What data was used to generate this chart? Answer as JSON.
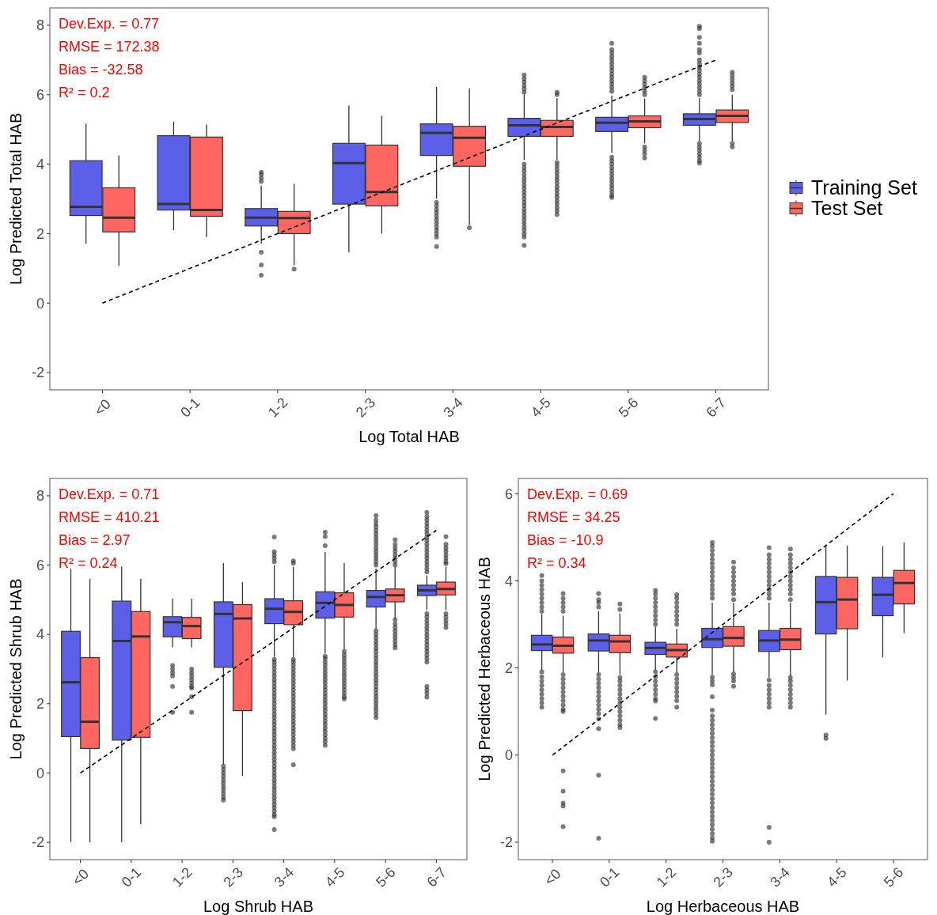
{
  "chart_data": [
    {
      "type": "box",
      "xlabel": "Log Total HAB",
      "ylabel": "Log Predicted Total HAB",
      "categories": [
        "<0",
        "0-1",
        "1-2",
        "2-3",
        "3-4",
        "4-5",
        "5-6",
        "6-7"
      ],
      "ylim": [
        -2.5,
        8.5
      ],
      "yticks": [
        -2,
        0,
        2,
        4,
        6,
        8
      ],
      "legend": "right",
      "annotations": [
        "Dev.Exp. = 0.77",
        "RMSE = 172.38",
        "Bias = -32.58",
        "R² = 0.2"
      ],
      "series": [
        {
          "name": "Training Set",
          "color": "#5c5fe8",
          "boxes": [
            {
              "low": 1.71,
              "q1": 2.52,
              "median": 2.77,
              "q3": 4.1,
              "high": 5.17
            },
            {
              "low": 2.1,
              "q1": 2.68,
              "median": 2.85,
              "q3": 4.82,
              "high": 5.22
            },
            {
              "low": 1.71,
              "q1": 2.22,
              "median": 2.46,
              "q3": 2.72,
              "high": 3.38,
              "outliers": [
                3.77,
                3.7,
                3.6,
                3.5,
                1.46,
                1.1,
                0.8
              ]
            },
            {
              "low": 1.46,
              "q1": 2.85,
              "median": 4.03,
              "q3": 4.6,
              "high": 5.69
            },
            {
              "low": 3.0,
              "q1": 4.25,
              "median": 4.9,
              "q3": 5.16,
              "high": 6.22,
              "outliers": [
                2.9,
                2.8,
                2.7,
                2.6,
                2.5,
                2.4,
                2.3,
                2.2,
                2.1,
                2.0,
                1.9,
                1.63
              ]
            },
            {
              "low": 4.12,
              "q1": 4.8,
              "median": 5.12,
              "q3": 5.32,
              "high": 6.0,
              "outliers": [
                6.57,
                6.47,
                6.37,
                6.27,
                6.17,
                6.07,
                4.0,
                3.9,
                3.8,
                3.7,
                3.6,
                3.5,
                3.4,
                3.3,
                3.2,
                3.1,
                3.0,
                2.9,
                2.8,
                2.7,
                2.6,
                2.5,
                2.4,
                2.3,
                2.2,
                2.1,
                2.0,
                1.9,
                1.66
              ]
            },
            {
              "low": 4.33,
              "q1": 4.94,
              "median": 5.19,
              "q3": 5.35,
              "high": 5.97,
              "outliers": [
                7.48,
                7.3,
                7.2,
                7.1,
                7.0,
                6.9,
                6.8,
                6.7,
                6.6,
                6.5,
                6.4,
                6.3,
                6.2,
                6.1,
                4.2,
                4.1,
                4.0,
                3.9,
                3.8,
                3.7,
                3.6,
                3.5,
                3.4,
                3.3,
                3.2,
                3.1,
                3.04
              ]
            },
            {
              "low": 4.67,
              "q1": 5.12,
              "median": 5.3,
              "q3": 5.45,
              "high": 5.9,
              "outliers": [
                7.97,
                7.9,
                7.65,
                7.48,
                7.3,
                7.2,
                7.0,
                6.9,
                6.8,
                6.7,
                6.6,
                6.5,
                6.4,
                6.3,
                6.2,
                6.1,
                6.0,
                4.6,
                4.5,
                4.4,
                4.3,
                4.2,
                4.1,
                4.03
              ]
            }
          ]
        },
        {
          "name": "Test Set",
          "color": "#fe6661",
          "boxes": [
            {
              "low": 1.07,
              "q1": 2.05,
              "median": 2.46,
              "q3": 3.32,
              "high": 4.25
            },
            {
              "low": 1.9,
              "q1": 2.5,
              "median": 2.68,
              "q3": 4.78,
              "high": 5.14
            },
            {
              "low": 1.1,
              "q1": 2.0,
              "median": 2.45,
              "q3": 2.64,
              "high": 3.44,
              "outliers": [
                0.98
              ]
            },
            {
              "low": 2.0,
              "q1": 2.8,
              "median": 3.2,
              "q3": 4.55,
              "high": 5.39
            },
            {
              "low": 2.25,
              "q1": 3.94,
              "median": 4.76,
              "q3": 5.09,
              "high": 6.18,
              "outliers": [
                2.17
              ]
            },
            {
              "low": 4.13,
              "q1": 4.8,
              "median": 5.07,
              "q3": 5.26,
              "high": 5.9,
              "outliers": [
                6.07,
                6.0,
                4.05,
                3.95,
                3.85,
                3.75,
                3.65,
                3.55,
                3.45,
                3.35,
                3.25,
                3.15,
                3.05,
                2.95,
                2.85,
                2.75,
                2.65,
                2.55
              ]
            },
            {
              "low": 4.6,
              "q1": 5.05,
              "median": 5.23,
              "q3": 5.39,
              "high": 5.89,
              "outliers": [
                6.5,
                6.4,
                6.3,
                6.2,
                6.1,
                6.0,
                4.5,
                4.4,
                4.3,
                4.18
              ]
            },
            {
              "low": 4.67,
              "q1": 5.2,
              "median": 5.39,
              "q3": 5.56,
              "high": 6.0,
              "outliers": [
                6.65,
                6.55,
                6.45,
                6.35,
                6.25,
                6.15,
                4.6,
                4.5
              ]
            }
          ]
        },
        {
          "type": "line",
          "x": [
            "<0",
            "6-7"
          ],
          "values": [
            0,
            7
          ],
          "color": "#000000",
          "line_style": "dashed"
        }
      ]
    },
    {
      "type": "box",
      "xlabel": "Log Shrub HAB",
      "ylabel": "Log Predicted Shrub HAB",
      "categories": [
        "<0",
        "0-1",
        "1-2",
        "2-3",
        "3-4",
        "4-5",
        "5-6",
        "6-7"
      ],
      "ylim": [
        -2.5,
        8.5
      ],
      "yticks": [
        -2,
        0,
        2,
        4,
        6,
        8
      ],
      "annotations": [
        "Dev.Exp. = 0.71",
        "RMSE = 410.21",
        "Bias = 2.97",
        "R² = 0.24"
      ],
      "series": [
        {
          "color": "#5c5fe8",
          "boxes": [
            {
              "low": -1.99,
              "q1": 1.05,
              "median": 2.62,
              "q3": 4.09,
              "high": 5.89
            },
            {
              "low": -1.99,
              "q1": 0.95,
              "median": 3.81,
              "q3": 4.96,
              "high": 5.96
            },
            {
              "low": 3.63,
              "q1": 3.93,
              "median": 4.35,
              "q3": 4.51,
              "high": 5.03,
              "outliers": [
                3.1,
                3.0,
                2.9,
                2.8,
                2.5,
                1.75
              ]
            },
            {
              "low": 0.25,
              "q1": 3.05,
              "median": 4.59,
              "q3": 4.94,
              "high": 6.06,
              "outliers": [
                0.2,
                0.1,
                0.0,
                -0.1,
                -0.2,
                -0.3,
                -0.4,
                -0.5,
                -0.6,
                -0.7,
                -0.78
              ]
            },
            {
              "low": 3.35,
              "q1": 4.31,
              "median": 4.74,
              "q3": 5.03,
              "high": 6.0,
              "outliers": [
                6.81,
                6.39,
                6.3,
                6.2,
                6.1,
                3.28,
                3.2,
                3.1,
                3.0,
                2.9,
                2.8,
                2.7,
                2.6,
                2.5,
                2.4,
                2.3,
                2.2,
                2.1,
                2.0,
                1.9,
                1.8,
                1.7,
                1.6,
                1.5,
                1.4,
                1.3,
                1.2,
                1.1,
                1.0,
                0.9,
                0.8,
                0.7,
                0.6,
                0.5,
                0.4,
                0.3,
                0.2,
                0.1,
                0.0,
                -0.1,
                -0.2,
                -0.3,
                -0.4,
                -0.5,
                -0.6,
                -0.7,
                -0.8,
                -0.9,
                -1.0,
                -1.1,
                -1.2,
                -1.26,
                -1.63
              ]
            },
            {
              "low": 3.45,
              "q1": 4.47,
              "median": 4.91,
              "q3": 5.23,
              "high": 6.38,
              "outliers": [
                6.95,
                6.82,
                6.56,
                3.37,
                3.3,
                3.2,
                3.1,
                3.0,
                2.9,
                2.8,
                2.7,
                2.6,
                2.5,
                2.4,
                2.3,
                2.2,
                2.1,
                2.0,
                1.9,
                1.8,
                1.7,
                1.6,
                1.5,
                1.4,
                1.3,
                1.2,
                1.1,
                1.0,
                0.9,
                0.8
              ]
            },
            {
              "low": 4.15,
              "q1": 4.79,
              "median": 5.08,
              "q3": 5.27,
              "high": 5.9,
              "outliers": [
                7.43,
                7.3,
                7.2,
                7.1,
                7.0,
                6.9,
                6.8,
                6.7,
                6.6,
                6.5,
                6.4,
                6.3,
                6.2,
                6.1,
                6.0,
                4.1,
                4.0,
                3.9,
                3.8,
                3.7,
                3.6,
                3.5,
                3.4,
                3.3,
                3.2,
                3.1,
                3.0,
                2.9,
                2.8,
                2.7,
                2.6,
                2.5,
                2.4,
                2.3,
                2.2,
                2.1,
                2.0,
                1.9,
                1.8,
                1.7,
                1.6
              ]
            },
            {
              "low": 4.7,
              "q1": 5.12,
              "median": 5.27,
              "q3": 5.42,
              "high": 5.7,
              "outliers": [
                7.52,
                7.4,
                7.3,
                7.2,
                7.1,
                7.0,
                6.9,
                6.8,
                6.7,
                6.6,
                6.5,
                6.4,
                6.3,
                6.2,
                6.1,
                6.0,
                5.9,
                5.8,
                4.6,
                4.5,
                4.4,
                4.3,
                4.2,
                4.1,
                4.0,
                3.9,
                3.8,
                3.7,
                3.6,
                3.5,
                3.4,
                3.3,
                3.2,
                2.5,
                2.4,
                2.3,
                2.19
              ]
            }
          ]
        },
        {
          "color": "#fe6661",
          "boxes": [
            {
              "low": -2.0,
              "q1": 0.71,
              "median": 1.48,
              "q3": 3.33,
              "high": 5.6
            },
            {
              "low": -1.48,
              "q1": 1.03,
              "median": 3.94,
              "q3": 4.66,
              "high": 5.6
            },
            {
              "low": 3.63,
              "q1": 3.88,
              "median": 4.24,
              "q3": 4.49,
              "high": 5.03,
              "outliers": [
                3.0,
                2.9,
                2.8,
                2.7,
                2.6,
                2.5,
                2.45,
                2.2,
                1.75
              ]
            },
            {
              "low": -0.08,
              "q1": 1.8,
              "median": 4.46,
              "q3": 4.86,
              "high": 5.51
            },
            {
              "low": 3.35,
              "q1": 4.28,
              "median": 4.65,
              "q3": 4.97,
              "high": 5.95,
              "outliers": [
                6.12,
                6.05,
                3.28,
                3.2,
                3.1,
                3.0,
                2.9,
                2.8,
                2.7,
                2.6,
                2.5,
                2.4,
                2.3,
                2.2,
                2.1,
                2.0,
                1.9,
                1.8,
                1.7,
                1.6,
                1.5,
                1.4,
                1.3,
                1.2,
                1.1,
                1.0,
                0.9,
                0.8,
                0.7,
                0.24
              ]
            },
            {
              "low": 3.55,
              "q1": 4.5,
              "median": 4.85,
              "q3": 5.2,
              "high": 6.06,
              "outliers": [
                3.5,
                3.4,
                3.3,
                3.2,
                3.1,
                3.0,
                2.9,
                2.8,
                2.7,
                2.6,
                2.5,
                2.4,
                2.3,
                2.2,
                2.14
              ]
            },
            {
              "low": 4.45,
              "q1": 4.94,
              "median": 5.13,
              "q3": 5.31,
              "high": 5.95,
              "outliers": [
                6.73,
                6.6,
                6.5,
                6.4,
                6.3,
                6.2,
                6.1,
                6.0,
                4.42,
                4.3,
                4.2,
                4.1,
                4.0,
                3.9,
                3.8,
                3.7,
                3.61
              ]
            },
            {
              "low": 4.7,
              "q1": 5.14,
              "median": 5.31,
              "q3": 5.51,
              "high": 5.95,
              "outliers": [
                6.82,
                6.6,
                6.5,
                6.4,
                6.3,
                6.2,
                6.1,
                6.04,
                4.6,
                4.5,
                4.4,
                4.3,
                4.2
              ]
            }
          ]
        },
        {
          "type": "line",
          "x": [
            "<0",
            "6-7"
          ],
          "values": [
            0,
            7
          ],
          "color": "#000000",
          "line_style": "dashed"
        }
      ]
    },
    {
      "type": "box",
      "xlabel": "Log Herbaceous HAB",
      "ylabel": "Log Predicted Herbaceous HAB",
      "categories": [
        "<0",
        "0-1",
        "1-2",
        "2-3",
        "3-4",
        "4-5",
        "5-6"
      ],
      "ylim": [
        -2.4,
        6.35
      ],
      "yticks": [
        -2,
        0,
        2,
        4,
        6
      ],
      "annotations": [
        "Dev.Exp. = 0.69",
        "RMSE = 34.25",
        "Bias = -10.9",
        "R² = 0.34"
      ],
      "series": [
        {
          "color": "#5c5fe8",
          "boxes": [
            {
              "low": 1.95,
              "q1": 2.4,
              "median": 2.54,
              "q3": 2.75,
              "high": 3.24,
              "outliers": [
                4.12,
                4.0,
                3.9,
                3.8,
                3.7,
                3.6,
                3.5,
                3.4,
                3.3,
                1.91,
                1.8,
                1.7,
                1.6,
                1.5,
                1.4,
                1.3,
                1.2,
                1.1
              ]
            },
            {
              "low": 1.9,
              "q1": 2.39,
              "median": 2.63,
              "q3": 2.78,
              "high": 3.3,
              "outliers": [
                3.71,
                3.57,
                3.5,
                3.4,
                1.85,
                1.75,
                1.65,
                1.55,
                1.45,
                1.35,
                1.25,
                1.15,
                1.05,
                0.95,
                0.83,
                0.61,
                -0.46,
                -1.91
              ]
            },
            {
              "low": 1.95,
              "q1": 2.31,
              "median": 2.46,
              "q3": 2.59,
              "high": 2.95,
              "outliers": [
                3.78,
                3.7,
                3.6,
                3.5,
                3.4,
                3.3,
                3.2,
                3.1,
                3.0,
                1.91,
                1.8,
                1.7,
                1.6,
                1.5,
                1.4,
                1.3,
                1.24,
                0.84
              ]
            },
            {
              "low": 1.85,
              "q1": 2.47,
              "median": 2.66,
              "q3": 2.91,
              "high": 3.5,
              "outliers": [
                4.88,
                4.8,
                4.7,
                4.6,
                4.5,
                4.4,
                4.3,
                4.2,
                4.1,
                4.0,
                3.9,
                3.8,
                3.7,
                3.6,
                1.79,
                1.7,
                1.61,
                1.34,
                1.03,
                0.9,
                0.8,
                0.7,
                0.6,
                0.5,
                0.4,
                0.3,
                0.2,
                0.1,
                0.0,
                -0.1,
                -0.2,
                -0.3,
                -0.4,
                -0.5,
                -0.6,
                -0.7,
                -0.8,
                -0.9,
                -1.0,
                -1.1,
                -1.2,
                -1.3,
                -1.4,
                -1.5,
                -1.6,
                -1.7,
                -1.8,
                -1.9,
                -1.98
              ]
            },
            {
              "low": 1.78,
              "q1": 2.38,
              "median": 2.63,
              "q3": 2.86,
              "high": 3.5,
              "outliers": [
                4.76,
                4.6,
                4.5,
                4.4,
                4.3,
                4.2,
                4.1,
                4.0,
                3.9,
                3.8,
                3.7,
                3.6,
                1.72,
                1.6,
                1.5,
                1.4,
                1.3,
                1.2,
                1.1,
                -1.66,
                -2.0
              ]
            },
            {
              "low": 0.93,
              "q1": 2.78,
              "median": 3.51,
              "q3": 4.1,
              "high": 4.83,
              "outliers": [
                0.46,
                0.38
              ]
            },
            {
              "low": 2.24,
              "q1": 3.2,
              "median": 3.68,
              "q3": 4.08,
              "high": 4.79
            }
          ]
        },
        {
          "color": "#fe6661",
          "boxes": [
            {
              "low": 1.9,
              "q1": 2.34,
              "median": 2.51,
              "q3": 2.71,
              "high": 3.2,
              "outliers": [
                3.71,
                3.6,
                3.5,
                3.4,
                3.3,
                1.85,
                1.75,
                1.65,
                1.55,
                1.45,
                1.35,
                1.25,
                1.15,
                1.05,
                1.0,
                -0.36,
                -0.83,
                -1.1,
                -1.17,
                -1.64
              ]
            },
            {
              "low": 1.85,
              "q1": 2.35,
              "median": 2.61,
              "q3": 2.75,
              "high": 3.25,
              "outliers": [
                3.47,
                3.34,
                1.78,
                1.7,
                1.6,
                1.5,
                1.4,
                1.3,
                1.2,
                1.1,
                1.0,
                0.9,
                0.8,
                0.7,
                0.63
              ]
            },
            {
              "low": 1.9,
              "q1": 2.25,
              "median": 2.41,
              "q3": 2.55,
              "high": 2.9,
              "outliers": [
                3.68,
                3.6,
                3.5,
                3.4,
                3.3,
                3.2,
                3.1,
                3.0,
                1.85,
                1.75,
                1.65,
                1.55,
                1.45,
                1.35,
                1.25,
                1.1
              ]
            },
            {
              "low": 1.9,
              "q1": 2.5,
              "median": 2.69,
              "q3": 2.95,
              "high": 3.5,
              "outliers": [
                4.43,
                4.3,
                4.2,
                4.1,
                4.0,
                3.9,
                3.8,
                3.7,
                3.57,
                1.86,
                1.78,
                1.7,
                1.58
              ]
            },
            {
              "low": 1.82,
              "q1": 2.42,
              "median": 2.65,
              "q3": 2.91,
              "high": 3.5,
              "outliers": [
                4.73,
                4.6,
                4.5,
                4.4,
                4.3,
                4.2,
                4.1,
                4.0,
                3.9,
                3.8,
                3.7,
                3.57,
                1.78,
                1.7,
                1.6,
                1.5,
                1.4,
                1.3,
                1.2,
                1.1
              ]
            },
            {
              "low": 1.71,
              "q1": 2.9,
              "median": 3.57,
              "q3": 4.08,
              "high": 4.81
            },
            {
              "low": 2.8,
              "q1": 3.47,
              "median": 3.95,
              "q3": 4.24,
              "high": 4.88
            }
          ]
        },
        {
          "type": "line",
          "x": [
            "<0",
            "5-6"
          ],
          "values": [
            0,
            6
          ],
          "color": "#000000",
          "line_style": "dashed"
        }
      ]
    }
  ]
}
